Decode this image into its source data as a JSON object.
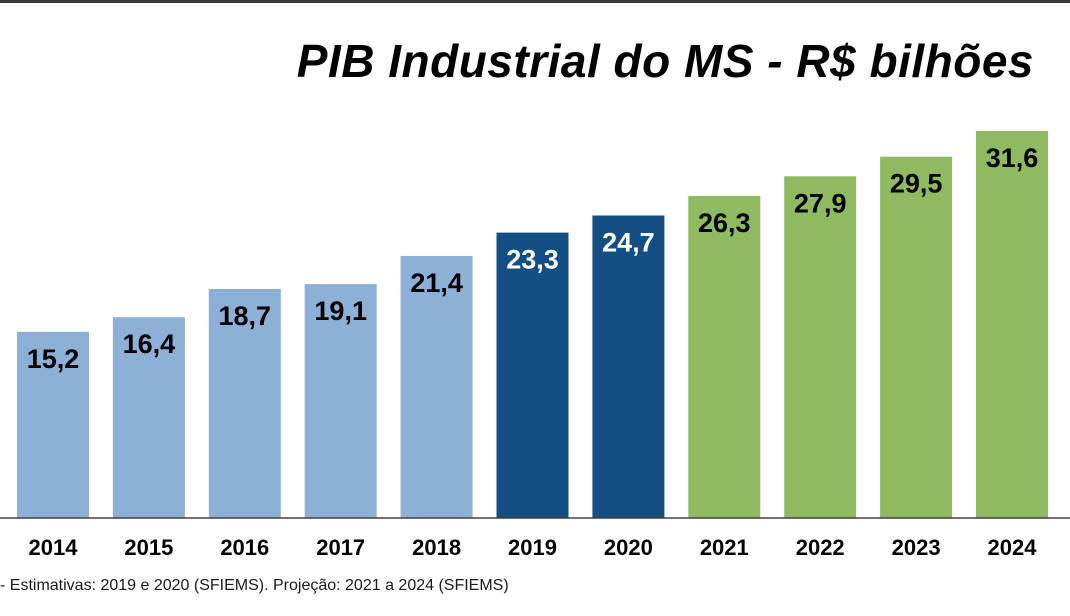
{
  "chart_data": {
    "type": "bar",
    "title": "PIB Industrial do MS - R$ bilhões",
    "xlabel": "",
    "ylabel": "",
    "categories": [
      "2014",
      "2015",
      "2016",
      "2017",
      "2018",
      "2019",
      "2020",
      "2021",
      "2022",
      "2023",
      "2024"
    ],
    "values": [
      15.2,
      16.4,
      18.7,
      19.1,
      21.4,
      23.3,
      24.7,
      26.3,
      27.9,
      29.5,
      31.6
    ],
    "data_labels": [
      "15,2",
      "16,4",
      "18,7",
      "19,1",
      "21,4",
      "23,3",
      "24,7",
      "26,3",
      "27,9",
      "29,5",
      "31,6"
    ],
    "bar_colors": [
      "#8eb0d6",
      "#8eb0d6",
      "#8eb0d6",
      "#8eb0d6",
      "#8eb0d6",
      "#134f82",
      "#134f82",
      "#8fba62",
      "#8fba62",
      "#8fba62",
      "#8fba62"
    ],
    "label_colors": [
      "#000000",
      "#000000",
      "#000000",
      "#000000",
      "#000000",
      "#ffffff",
      "#ffffff",
      "#000000",
      "#000000",
      "#000000",
      "#000000"
    ],
    "ylim": [
      0,
      31.6
    ],
    "grid": false,
    "legend": "none"
  },
  "footnote": "- Estimativas: 2019 e 2020 (SFIEMS). Projeção: 2021 a 2024 (SFIEMS)"
}
